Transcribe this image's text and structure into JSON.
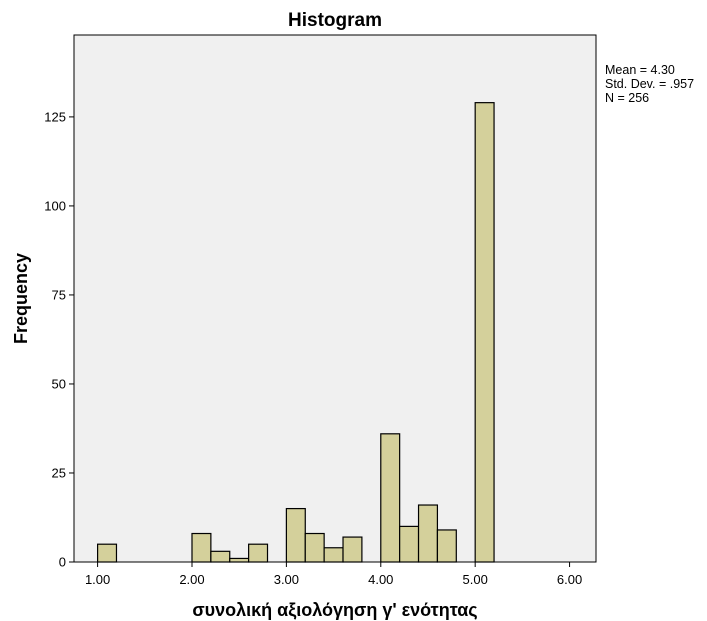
{
  "chart_data": {
    "type": "bar",
    "title": "Histogram",
    "xlabel": "συνολική αξιολόγηση γ' ενότητας",
    "ylabel": "Frequency",
    "xlim": [
      0.75,
      6.28
    ],
    "ylim": [
      0,
      148
    ],
    "x_ticks": [
      1,
      2,
      3,
      4,
      5,
      6
    ],
    "x_tick_labels": [
      "1.00",
      "2.00",
      "3.00",
      "4.00",
      "5.00",
      "6.00"
    ],
    "y_ticks": [
      0,
      25,
      50,
      75,
      100,
      125
    ],
    "y_tick_labels": [
      "0",
      "25",
      "50",
      "75",
      "100",
      "125"
    ],
    "bin_width": 0.2,
    "bins": [
      {
        "start": 1.0,
        "count": 5
      },
      {
        "start": 2.0,
        "count": 8
      },
      {
        "start": 2.2,
        "count": 3
      },
      {
        "start": 2.4,
        "count": 1
      },
      {
        "start": 2.6,
        "count": 5
      },
      {
        "start": 3.0,
        "count": 15
      },
      {
        "start": 3.2,
        "count": 8
      },
      {
        "start": 3.4,
        "count": 4
      },
      {
        "start": 3.6,
        "count": 7
      },
      {
        "start": 4.0,
        "count": 36
      },
      {
        "start": 4.2,
        "count": 10
      },
      {
        "start": 4.4,
        "count": 16
      },
      {
        "start": 4.6,
        "count": 9
      },
      {
        "start": 5.0,
        "count": 129
      }
    ],
    "stats": [
      "Mean = 4.30",
      "Std. Dev. = .957",
      "N = 256"
    ],
    "bar_color": "#d4d09b",
    "bar_stroke": "#000000",
    "plot_background": "#f0f0f0",
    "grid": false
  }
}
